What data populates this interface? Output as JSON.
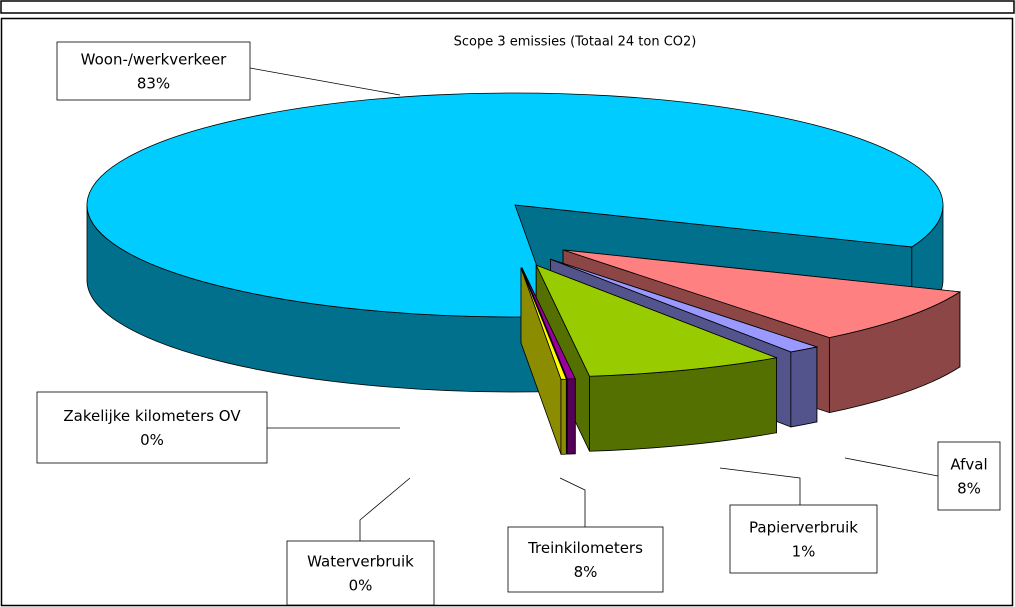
{
  "chart_data": {
    "type": "pie3d",
    "title": "Scope 3 emissies (Totaal 24 ton CO2)",
    "categories": [
      "Woon-/werkverkeer",
      "Afval",
      "Papierverbruik",
      "Treinkilometers",
      "Waterverbruik",
      "Zakelijke kilometers OV"
    ],
    "values": [
      82.6,
      8.2,
      1.2,
      7.5,
      0.3,
      0.2
    ],
    "value_labels": [
      "83%",
      "8%",
      "1%",
      "8%",
      "0%",
      "0%"
    ],
    "colors": [
      "#00ccff",
      "#ff8080",
      "#9999ff",
      "#99cc00",
      "#990099",
      "#ffff00"
    ]
  }
}
